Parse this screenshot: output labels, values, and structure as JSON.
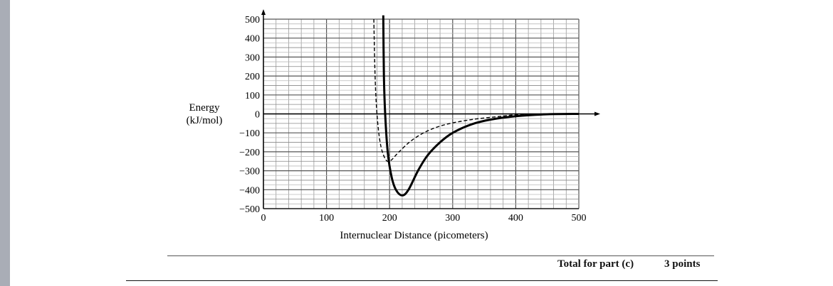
{
  "chart_data": {
    "type": "line",
    "title": "",
    "ylabel": [
      "Energy",
      "(kJ/mol)"
    ],
    "xlabel": "Internuclear Distance (picometers)",
    "xlim": [
      0,
      500
    ],
    "ylim": [
      -500,
      500
    ],
    "xticks": [
      0,
      100,
      200,
      300,
      400,
      500
    ],
    "yticks": [
      500,
      400,
      300,
      200,
      100,
      0,
      -100,
      -200,
      -300,
      -400,
      -500
    ],
    "ytick_labels": [
      "500",
      "400",
      "300",
      "200",
      "100",
      "0",
      "−100",
      "−200",
      "−300",
      "−400",
      "−500"
    ],
    "grid": true,
    "series": [
      {
        "style": "solid",
        "color": "#000000",
        "x": [
          190,
          191,
          193,
          197,
          203,
          210,
          220,
          230,
          245,
          260,
          280,
          300,
          330,
          360,
          400,
          450,
          500
        ],
        "y": [
          520,
          200,
          0,
          -200,
          -330,
          -400,
          -430,
          -400,
          -300,
          -220,
          -150,
          -100,
          -55,
          -30,
          -12,
          -2,
          0
        ]
      },
      {
        "style": "dashed",
        "color": "#000000",
        "x": [
          175,
          177,
          180,
          185,
          192,
          200,
          215,
          235,
          260,
          290,
          330,
          370,
          400,
          450,
          500
        ],
        "y": [
          500,
          200,
          0,
          -150,
          -230,
          -250,
          -200,
          -140,
          -90,
          -55,
          -30,
          -15,
          -5,
          0,
          0
        ]
      }
    ]
  },
  "footer": {
    "total_label": "Total for part (c)",
    "points": "3 points"
  }
}
